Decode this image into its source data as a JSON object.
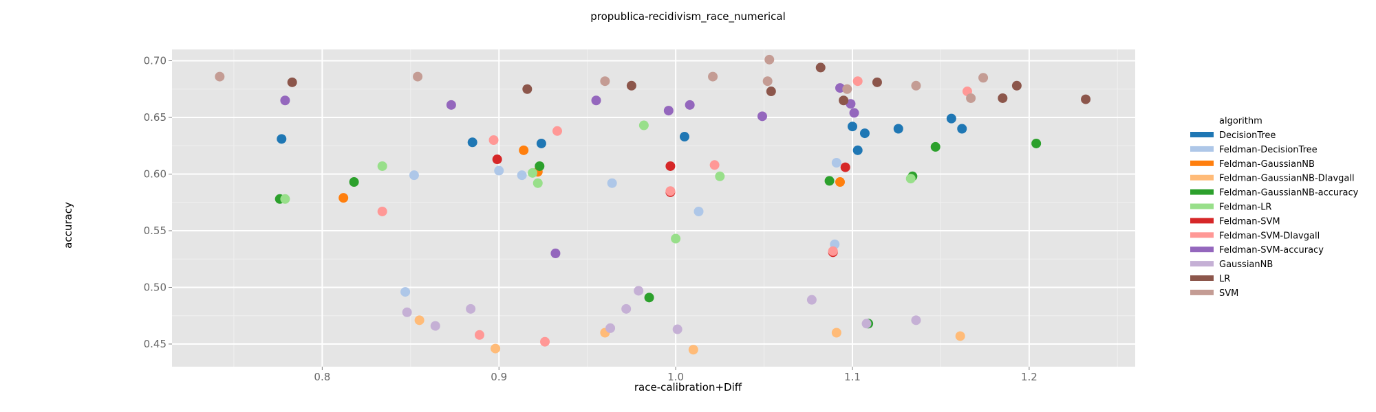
{
  "chart_data": {
    "type": "scatter",
    "title": "propublica-recidivism_race_numerical",
    "xlabel": "race-calibration+Diff",
    "ylabel": "accuracy",
    "xlim": [
      0.715,
      1.26
    ],
    "ylim": [
      0.43,
      0.71
    ],
    "xticks": [
      0.8,
      0.9,
      1.0,
      1.1,
      1.2
    ],
    "xtick_labels": [
      "0.8",
      "0.9",
      "1.0",
      "1.1",
      "1.2"
    ],
    "yticks": [
      0.45,
      0.5,
      0.55,
      0.6,
      0.65,
      0.7
    ],
    "ytick_labels": [
      "0.45",
      "0.50",
      "0.55",
      "0.60",
      "0.65",
      "0.70"
    ],
    "grid": true,
    "legend_title": "algorithm",
    "legend_position": "right",
    "series": [
      {
        "name": "DecisionTree",
        "color": "#1f77b4",
        "points": [
          [
            0.777,
            0.631
          ],
          [
            0.885,
            0.628
          ],
          [
            0.924,
            0.627
          ],
          [
            1.005,
            0.633
          ],
          [
            1.1,
            0.642
          ],
          [
            1.103,
            0.621
          ],
          [
            1.107,
            0.636
          ],
          [
            1.126,
            0.64
          ],
          [
            1.156,
            0.649
          ],
          [
            1.162,
            0.64
          ]
        ]
      },
      {
        "name": "Feldman-DecisionTree",
        "color": "#aec7e8",
        "points": [
          [
            0.847,
            0.496
          ],
          [
            0.852,
            0.599
          ],
          [
            0.9,
            0.603
          ],
          [
            0.913,
            0.599
          ],
          [
            0.964,
            0.592
          ],
          [
            1.013,
            0.567
          ],
          [
            1.09,
            0.538
          ],
          [
            1.091,
            0.61
          ],
          [
            1.109,
            0.468
          ]
        ]
      },
      {
        "name": "Feldman-GaussianNB",
        "color": "#ff7f0e",
        "points": [
          [
            0.812,
            0.579
          ],
          [
            0.914,
            0.621
          ],
          [
            0.922,
            0.602
          ],
          [
            1.093,
            0.593
          ]
        ]
      },
      {
        "name": "Feldman-GaussianNB-DIavgall",
        "color": "#ffbb78",
        "points": [
          [
            0.855,
            0.471
          ],
          [
            0.898,
            0.446
          ],
          [
            0.96,
            0.46
          ],
          [
            1.01,
            0.445
          ],
          [
            1.091,
            0.46
          ],
          [
            1.161,
            0.457
          ]
        ]
      },
      {
        "name": "Feldman-GaussianNB-accuracy",
        "color": "#2ca02c",
        "points": [
          [
            0.776,
            0.578
          ],
          [
            0.818,
            0.593
          ],
          [
            0.923,
            0.607
          ],
          [
            0.985,
            0.491
          ],
          [
            1.087,
            0.594
          ],
          [
            1.109,
            0.468
          ],
          [
            1.134,
            0.598
          ],
          [
            1.147,
            0.624
          ],
          [
            1.204,
            0.627
          ]
        ]
      },
      {
        "name": "Feldman-LR",
        "color": "#98df8a",
        "points": [
          [
            0.779,
            0.578
          ],
          [
            0.834,
            0.607
          ],
          [
            0.919,
            0.601
          ],
          [
            0.922,
            0.592
          ],
          [
            0.982,
            0.643
          ],
          [
            1.0,
            0.543
          ],
          [
            1.025,
            0.598
          ],
          [
            1.133,
            0.596
          ]
        ]
      },
      {
        "name": "Feldman-SVM",
        "color": "#d62728",
        "points": [
          [
            0.899,
            0.613
          ],
          [
            0.997,
            0.607
          ],
          [
            0.997,
            0.584
          ],
          [
            1.089,
            0.531
          ],
          [
            1.096,
            0.606
          ]
        ]
      },
      {
        "name": "Feldman-SVM-DIavgall",
        "color": "#ff9896",
        "points": [
          [
            0.834,
            0.567
          ],
          [
            0.889,
            0.458
          ],
          [
            0.897,
            0.63
          ],
          [
            0.926,
            0.452
          ],
          [
            0.933,
            0.638
          ],
          [
            0.997,
            0.585
          ],
          [
            1.022,
            0.608
          ],
          [
            1.089,
            0.532
          ],
          [
            1.103,
            0.682
          ],
          [
            1.165,
            0.673
          ]
        ]
      },
      {
        "name": "Feldman-SVM-accuracy",
        "color": "#9467bd",
        "points": [
          [
            0.779,
            0.665
          ],
          [
            0.873,
            0.661
          ],
          [
            0.932,
            0.53
          ],
          [
            0.955,
            0.665
          ],
          [
            0.996,
            0.656
          ],
          [
            1.008,
            0.661
          ],
          [
            1.049,
            0.651
          ],
          [
            1.093,
            0.676
          ],
          [
            1.099,
            0.662
          ],
          [
            1.101,
            0.654
          ]
        ]
      },
      {
        "name": "GaussianNB",
        "color": "#c5b0d5",
        "points": [
          [
            0.848,
            0.478
          ],
          [
            0.864,
            0.466
          ],
          [
            0.884,
            0.481
          ],
          [
            0.963,
            0.464
          ],
          [
            0.972,
            0.481
          ],
          [
            0.979,
            0.497
          ],
          [
            1.001,
            0.463
          ],
          [
            1.077,
            0.489
          ],
          [
            1.108,
            0.468
          ],
          [
            1.136,
            0.471
          ]
        ]
      },
      {
        "name": "LR",
        "color": "#8c564b",
        "points": [
          [
            0.783,
            0.681
          ],
          [
            0.916,
            0.675
          ],
          [
            0.975,
            0.678
          ],
          [
            1.054,
            0.673
          ],
          [
            1.082,
            0.694
          ],
          [
            1.095,
            0.665
          ],
          [
            1.114,
            0.681
          ],
          [
            1.185,
            0.667
          ],
          [
            1.193,
            0.678
          ],
          [
            1.232,
            0.666
          ]
        ]
      },
      {
        "name": "SVM",
        "color": "#c49c94",
        "points": [
          [
            0.742,
            0.686
          ],
          [
            0.854,
            0.686
          ],
          [
            0.96,
            0.682
          ],
          [
            1.021,
            0.686
          ],
          [
            1.052,
            0.682
          ],
          [
            1.053,
            0.701
          ],
          [
            1.097,
            0.675
          ],
          [
            1.136,
            0.678
          ],
          [
            1.167,
            0.667
          ],
          [
            1.174,
            0.685
          ]
        ]
      }
    ]
  }
}
